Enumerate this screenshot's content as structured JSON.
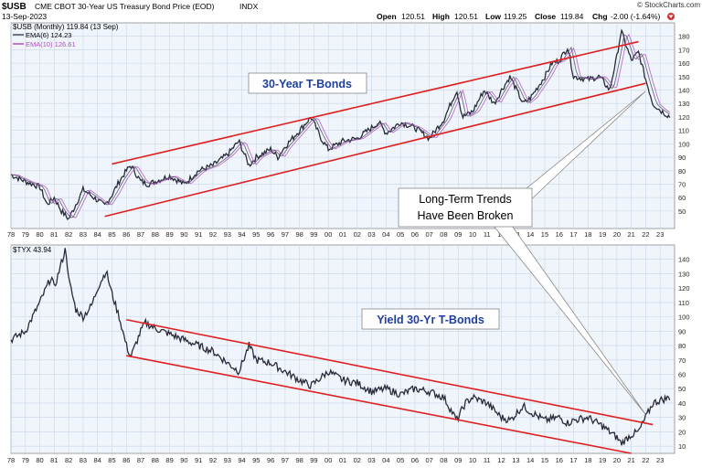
{
  "header": {
    "symbol": "$USB",
    "description": "CME CBOT 30-Year US Treasury Bond Price (EOD)",
    "exchange": "INDX",
    "date": "13-Sep-2023",
    "open_label": "Open",
    "open": "120.51",
    "high_label": "High",
    "high": "120.51",
    "low_label": "Low",
    "low": "119.25",
    "close_label": "Close",
    "close": "119.84",
    "chg_label": "Chg",
    "chg": "-2.00 (-1.64%)",
    "watermark": "© StockCharts.com"
  },
  "colors": {
    "panel_bg": "#f0f5fb",
    "grid": "#c9d6e8",
    "price": "#2a2a3a",
    "ema6": "#4a4a5a",
    "ema10": "#b04cc4",
    "trend": "#e02020",
    "annotation": "#1f3f9f",
    "header_bg": "#f4f4f4"
  },
  "x_ticks": [
    "78",
    "79",
    "80",
    "81",
    "82",
    "83",
    "84",
    "85",
    "86",
    "87",
    "88",
    "89",
    "90",
    "91",
    "92",
    "93",
    "94",
    "95",
    "96",
    "97",
    "98",
    "99",
    "00",
    "01",
    "02",
    "03",
    "04",
    "05",
    "06",
    "07",
    "08",
    "09",
    "10",
    "11",
    "12",
    "13",
    "14",
    "15",
    "16",
    "17",
    "18",
    "19",
    "20",
    "21",
    "22",
    "23"
  ],
  "chart_data": [
    {
      "type": "line",
      "name_label": "$USB (Monthly) 119.84 (13 Sep)",
      "legend": [
        {
          "name": "EMA(6) 124.23",
          "color": "#4a4a5a"
        },
        {
          "name": "EMA(10) 126.61",
          "color": "#b04cc4"
        }
      ],
      "x": [
        1978.0,
        1979.0,
        1980.0,
        1980.5,
        1981.0,
        1981.5,
        1982.0,
        1982.5,
        1983.0,
        1984.0,
        1984.5,
        1985.0,
        1985.5,
        1986.0,
        1986.3,
        1987.0,
        1987.5,
        1988.0,
        1989.0,
        1990.0,
        1991.0,
        1992.0,
        1993.0,
        1993.8,
        1994.5,
        1995.0,
        1996.0,
        1996.5,
        1997.0,
        1998.0,
        1998.8,
        1999.5,
        2000.0,
        2001.0,
        2002.0,
        2003.0,
        2003.5,
        2004.0,
        2005.0,
        2006.0,
        2007.0,
        2008.0,
        2008.9,
        2009.3,
        2010.0,
        2010.8,
        2011.5,
        2012.0,
        2012.6,
        2013.5,
        2014.0,
        2015.0,
        2015.5,
        2016.0,
        2016.6,
        2017.0,
        2018.0,
        2018.8,
        2019.5,
        2020.0,
        2020.3,
        2021.0,
        2021.5,
        2022.0,
        2022.5,
        2023.0,
        2023.7
      ],
      "y": [
        77,
        72,
        68,
        55,
        60,
        50,
        44,
        55,
        66,
        58,
        54,
        62,
        72,
        80,
        84,
        72,
        70,
        72,
        76,
        70,
        80,
        84,
        92,
        102,
        84,
        90,
        96,
        90,
        98,
        110,
        120,
        104,
        96,
        102,
        104,
        112,
        116,
        108,
        116,
        112,
        104,
        118,
        140,
        120,
        124,
        140,
        130,
        140,
        150,
        130,
        134,
        150,
        160,
        162,
        172,
        150,
        148,
        150,
        140,
        165,
        184,
        162,
        168,
        148,
        130,
        125,
        120
      ],
      "ylim": [
        37,
        190
      ],
      "y_ticks": [
        50,
        60,
        70,
        80,
        90,
        100,
        110,
        120,
        130,
        140,
        150,
        160,
        170,
        180
      ],
      "trendlines": [
        {
          "x": [
            1985.0,
            2021.5
          ],
          "y": [
            85,
            176
          ]
        },
        {
          "x": [
            1984.5,
            2022.0
          ],
          "y": [
            46,
            145
          ]
        }
      ],
      "annotation": "30-Year T-Bonds"
    },
    {
      "type": "line",
      "name_label": "$TYX 43.94",
      "x": [
        1978.0,
        1979.0,
        1979.5,
        1980.0,
        1980.8,
        1981.0,
        1981.8,
        1982.0,
        1982.5,
        1983.0,
        1983.6,
        1984.0,
        1984.6,
        1985.0,
        1985.5,
        1986.0,
        1986.3,
        1987.0,
        1987.3,
        1988.0,
        1989.0,
        1990.0,
        1991.0,
        1992.0,
        1993.0,
        1993.8,
        1994.5,
        1995.0,
        1996.0,
        1997.0,
        1998.0,
        1998.8,
        2000.0,
        2001.0,
        2002.0,
        2003.0,
        2004.0,
        2005.0,
        2006.0,
        2007.0,
        2008.0,
        2008.9,
        2009.5,
        2010.0,
        2011.0,
        2012.0,
        2012.6,
        2013.5,
        2014.0,
        2015.0,
        2016.0,
        2016.6,
        2017.0,
        2018.0,
        2019.0,
        2020.0,
        2020.3,
        2021.0,
        2021.5,
        2022.0,
        2022.5,
        2023.0,
        2023.7
      ],
      "y": [
        84,
        90,
        100,
        110,
        128,
        120,
        148,
        126,
        105,
        100,
        108,
        120,
        132,
        116,
        100,
        80,
        72,
        90,
        96,
        92,
        88,
        84,
        80,
        76,
        68,
        62,
        80,
        70,
        68,
        62,
        56,
        52,
        62,
        56,
        54,
        48,
        50,
        46,
        50,
        48,
        44,
        28,
        40,
        44,
        40,
        30,
        28,
        38,
        34,
        28,
        30,
        26,
        28,
        30,
        24,
        16,
        12,
        18,
        20,
        30,
        40,
        42,
        44
      ],
      "ylim": [
        5,
        150
      ],
      "y_ticks": [
        10,
        20,
        30,
        40,
        50,
        60,
        70,
        80,
        90,
        100,
        110,
        120,
        130,
        140
      ],
      "trendlines": [
        {
          "x": [
            1986.0,
            2022.5
          ],
          "y": [
            98,
            25
          ]
        },
        {
          "x": [
            1986.0,
            2021.0
          ],
          "y": [
            73,
            5
          ]
        }
      ],
      "annotation": "Yield 30-Yr T-Bonds"
    }
  ],
  "callout": {
    "line1": "Long-Term Trends",
    "line2": "Have Been Broken"
  }
}
